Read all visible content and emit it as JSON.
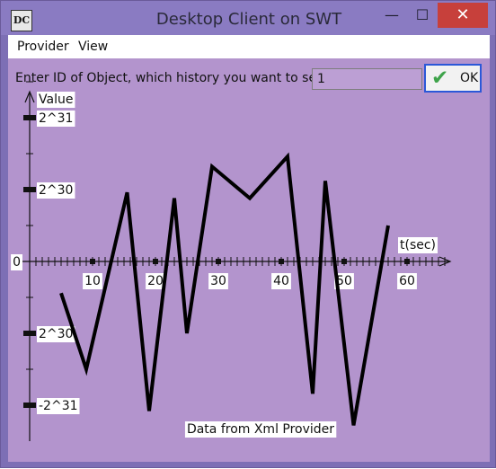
{
  "window": {
    "title": "Desktop Client on SWT",
    "icon_name": "app-dc-icon",
    "icon_text": "DC",
    "controls": {
      "minimize": "—",
      "maximize": "☐",
      "close": "✕"
    }
  },
  "menu": {
    "items": [
      "Provider",
      "View"
    ]
  },
  "form": {
    "prompt": "Enter ID of Object, which history you want to see:",
    "id_value": "1",
    "ok_label": "OK"
  },
  "chart_data": {
    "type": "line",
    "y_axis_label": "Value",
    "x_axis_label": "t(sec)",
    "y_tick_labels": [
      "2^31",
      "2^30",
      "0",
      "2^30",
      "-2^31"
    ],
    "x_tick_labels": [
      "10",
      "20",
      "30",
      "40",
      "50",
      "60"
    ],
    "x_ticks": [
      10,
      20,
      30,
      40,
      50,
      60
    ],
    "y_tick_fractions": [
      1.0,
      0.5,
      0,
      -0.5,
      -1.0
    ],
    "xlim": [
      0,
      67
    ],
    "ylim_fraction": [
      -1.05,
      1.2
    ],
    "annotation": "Data from Xml Provider",
    "series": [
      {
        "x": [
          5,
          9,
          15.5,
          19,
          23,
          25,
          29,
          35,
          41,
          45,
          47,
          51.5,
          57
        ],
        "y_fraction": [
          -0.22,
          -0.75,
          0.48,
          -1.04,
          0.44,
          -0.5,
          0.66,
          0.44,
          0.73,
          -0.92,
          0.56,
          -1.14,
          0.25
        ]
      }
    ]
  }
}
